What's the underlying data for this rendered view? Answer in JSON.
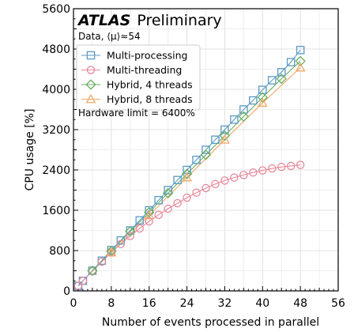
{
  "chart_data": {
    "type": "line",
    "experiment": "ATLAS",
    "experiment_label": "Preliminary",
    "dataset": "Data, ⟨μ⟩≈54",
    "annotation": "Hardware limit = 6400%",
    "xlabel": "Number of events processed in parallel",
    "ylabel": "CPU usage [%]",
    "xlim": [
      0,
      56
    ],
    "ylim": [
      0,
      5600
    ],
    "xticks": [
      "0",
      "8",
      "16",
      "24",
      "32",
      "40",
      "48",
      "56"
    ],
    "yticks": [
      "0",
      "800",
      "1600",
      "2400",
      "3200",
      "4000",
      "4800",
      "5600"
    ],
    "xtick_values": [
      0,
      8,
      16,
      24,
      32,
      40,
      48,
      56
    ],
    "ytick_values": [
      0,
      800,
      1600,
      2400,
      3200,
      4000,
      4800,
      5600
    ],
    "grid": true,
    "legend_position": "top-left",
    "series": [
      {
        "name": "Multi-processing",
        "color": "#5a9bc4",
        "marker": "square",
        "x": [
          1,
          2,
          4,
          6,
          8,
          10,
          12,
          14,
          16,
          18,
          20,
          22,
          24,
          26,
          28,
          30,
          32,
          34,
          36,
          38,
          40,
          42,
          44,
          46,
          48
        ],
        "y": [
          100,
          200,
          400,
          600,
          810,
          1000,
          1200,
          1400,
          1600,
          1800,
          2000,
          2200,
          2400,
          2600,
          2800,
          3000,
          3200,
          3400,
          3600,
          3780,
          3990,
          4180,
          4340,
          4540,
          4780
        ]
      },
      {
        "name": "Multi-threading",
        "color": "#e8899c",
        "marker": "circle",
        "x": [
          1,
          2,
          4,
          6,
          8,
          10,
          12,
          14,
          16,
          18,
          20,
          22,
          24,
          26,
          28,
          30,
          32,
          34,
          36,
          38,
          40,
          42,
          44,
          46,
          48
        ],
        "y": [
          100,
          200,
          390,
          580,
          760,
          930,
          1090,
          1240,
          1380,
          1510,
          1630,
          1740,
          1850,
          1950,
          2040,
          2120,
          2190,
          2250,
          2300,
          2350,
          2390,
          2430,
          2460,
          2480,
          2500
        ]
      },
      {
        "name": "Hybrid, 4 threads",
        "color": "#6aaf5f",
        "marker": "diamond",
        "x": [
          4,
          8,
          12,
          16,
          20,
          24,
          28,
          32,
          36,
          40,
          44,
          48
        ],
        "y": [
          400,
          790,
          1180,
          1560,
          1940,
          2320,
          2700,
          3080,
          3460,
          3840,
          4210,
          4560
        ]
      },
      {
        "name": "Hybrid, 8 threads",
        "color": "#f0a868",
        "marker": "triangle",
        "x": [
          8,
          16,
          24,
          32,
          40,
          48
        ],
        "y": [
          760,
          1500,
          2250,
          3000,
          3730,
          4430
        ]
      }
    ]
  }
}
